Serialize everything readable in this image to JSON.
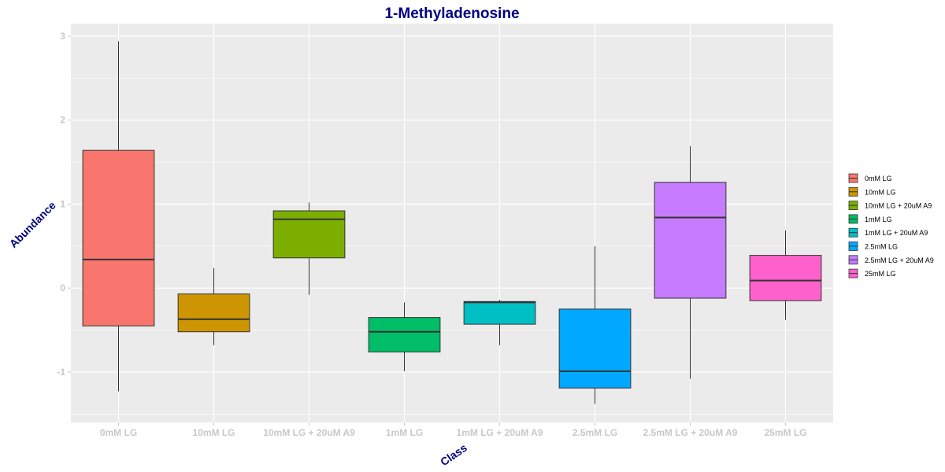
{
  "chart_data": {
    "type": "boxplot",
    "title": "1-Methyladenosine",
    "xlabel": "Class",
    "ylabel": "Abundance",
    "ylim": [
      -1.6,
      3.15
    ],
    "yticks": [
      -1,
      0,
      1,
      2,
      3
    ],
    "grid": true,
    "legend_position": "right",
    "categories": [
      "0mM LG",
      "10mM LG",
      "10mM LG + 20uM A9",
      "1mM LG",
      "1mM LG + 20uM A9",
      "2.5mM LG",
      "2.5mM LG + 20uM A9",
      "25mM LG"
    ],
    "series": [
      {
        "name": "0mM LG",
        "min": -1.23,
        "q1": -0.45,
        "median": 0.34,
        "q3": 1.64,
        "max": 2.94,
        "color": "#F8766D"
      },
      {
        "name": "10mM LG",
        "min": -0.68,
        "q1": -0.52,
        "median": -0.37,
        "q3": -0.07,
        "max": 0.24,
        "color": "#CD9600"
      },
      {
        "name": "10mM LG + 20uM A9",
        "min": -0.08,
        "q1": 0.36,
        "median": 0.82,
        "q3": 0.92,
        "max": 1.02,
        "color": "#7CAE00"
      },
      {
        "name": "1mM LG",
        "min": -0.99,
        "q1": -0.76,
        "median": -0.52,
        "q3": -0.35,
        "max": -0.17,
        "color": "#00BE67"
      },
      {
        "name": "1mM LG + 20uM A9",
        "min": -0.68,
        "q1": -0.43,
        "median": -0.17,
        "q3": -0.16,
        "max": -0.14,
        "color": "#00BFC4"
      },
      {
        "name": "2.5mM LG",
        "min": -1.38,
        "q1": -1.19,
        "median": -0.99,
        "q3": -0.25,
        "max": 0.5,
        "color": "#00A9FF"
      },
      {
        "name": "2.5mM LG + 20uM A9",
        "min": -1.08,
        "q1": -0.12,
        "median": 0.84,
        "q3": 1.26,
        "max": 1.69,
        "color": "#C77CFF"
      },
      {
        "name": "25mM LG",
        "min": -0.38,
        "q1": -0.15,
        "median": 0.09,
        "q3": 0.39,
        "max": 0.69,
        "color": "#FF61CC"
      }
    ]
  }
}
